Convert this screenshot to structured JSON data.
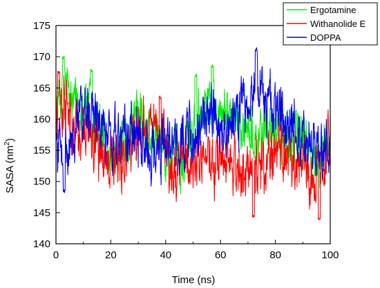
{
  "chart_data": {
    "type": "line",
    "xlabel": "Time (ns)",
    "ylabel_main": "SASA (nm",
    "ylabel_sup": "2",
    "ylabel_close": ")",
    "xlim": [
      0,
      100
    ],
    "ylim": [
      140,
      175
    ],
    "xticks": [
      0,
      20,
      40,
      60,
      80,
      100
    ],
    "yticks": [
      140,
      145,
      150,
      155,
      160,
      165,
      170,
      175
    ],
    "legend_position": "top-right",
    "grid": false,
    "series": [
      {
        "name": "Ergotamine",
        "color": "#00ee00",
        "anchors": [
          [
            0,
            161
          ],
          [
            3,
            166
          ],
          [
            6,
            162
          ],
          [
            10,
            163
          ],
          [
            14,
            161
          ],
          [
            18,
            156
          ],
          [
            22,
            155
          ],
          [
            26,
            157
          ],
          [
            30,
            160
          ],
          [
            34,
            157
          ],
          [
            38,
            156
          ],
          [
            42,
            153
          ],
          [
            46,
            154
          ],
          [
            50,
            158
          ],
          [
            54,
            163
          ],
          [
            58,
            164
          ],
          [
            62,
            161
          ],
          [
            66,
            160
          ],
          [
            70,
            158
          ],
          [
            74,
            157
          ],
          [
            78,
            158
          ],
          [
            82,
            157
          ],
          [
            86,
            156
          ],
          [
            90,
            157
          ],
          [
            94,
            154
          ],
          [
            98,
            155
          ],
          [
            100,
            157
          ]
        ],
        "amp": 3.2,
        "spikes": [
          [
            2.7,
            169.8
          ],
          [
            13,
            167.8
          ],
          [
            51,
            167
          ],
          [
            57,
            168.5
          ]
        ]
      },
      {
        "name": "Withanolide E",
        "color": "#ff0000",
        "anchors": [
          [
            0,
            163
          ],
          [
            3,
            162
          ],
          [
            6,
            158
          ],
          [
            10,
            158
          ],
          [
            14,
            157
          ],
          [
            18,
            154
          ],
          [
            22,
            153
          ],
          [
            26,
            155
          ],
          [
            30,
            157
          ],
          [
            34,
            158
          ],
          [
            38,
            159
          ],
          [
            42,
            153
          ],
          [
            46,
            152
          ],
          [
            50,
            154
          ],
          [
            54,
            155
          ],
          [
            58,
            153
          ],
          [
            62,
            155
          ],
          [
            66,
            152
          ],
          [
            70,
            151
          ],
          [
            74,
            152
          ],
          [
            78,
            154
          ],
          [
            82,
            154
          ],
          [
            86,
            155
          ],
          [
            90,
            152
          ],
          [
            94,
            151
          ],
          [
            98,
            154
          ],
          [
            100,
            156
          ]
        ],
        "amp": 3.4,
        "spikes": [
          [
            1,
            167.5
          ],
          [
            38,
            163.5
          ],
          [
            72,
            144.5
          ],
          [
            96,
            144
          ]
        ]
      },
      {
        "name": "DOPPA",
        "color": "#0000ee",
        "anchors": [
          [
            0,
            156
          ],
          [
            3,
            153
          ],
          [
            6,
            158
          ],
          [
            10,
            160
          ],
          [
            14,
            160
          ],
          [
            18,
            158
          ],
          [
            22,
            157
          ],
          [
            26,
            158
          ],
          [
            30,
            157
          ],
          [
            34,
            156
          ],
          [
            38,
            155
          ],
          [
            42,
            157
          ],
          [
            46,
            157
          ],
          [
            50,
            159
          ],
          [
            54,
            159
          ],
          [
            58,
            160
          ],
          [
            62,
            160
          ],
          [
            66,
            160
          ],
          [
            70,
            163
          ],
          [
            74,
            165
          ],
          [
            78,
            162
          ],
          [
            82,
            161
          ],
          [
            86,
            158
          ],
          [
            90,
            157
          ],
          [
            94,
            156
          ],
          [
            98,
            155
          ],
          [
            100,
            158
          ]
        ],
        "amp": 3.6,
        "spikes": [
          [
            73,
            171.2
          ],
          [
            3,
            148.5
          ]
        ]
      }
    ]
  }
}
